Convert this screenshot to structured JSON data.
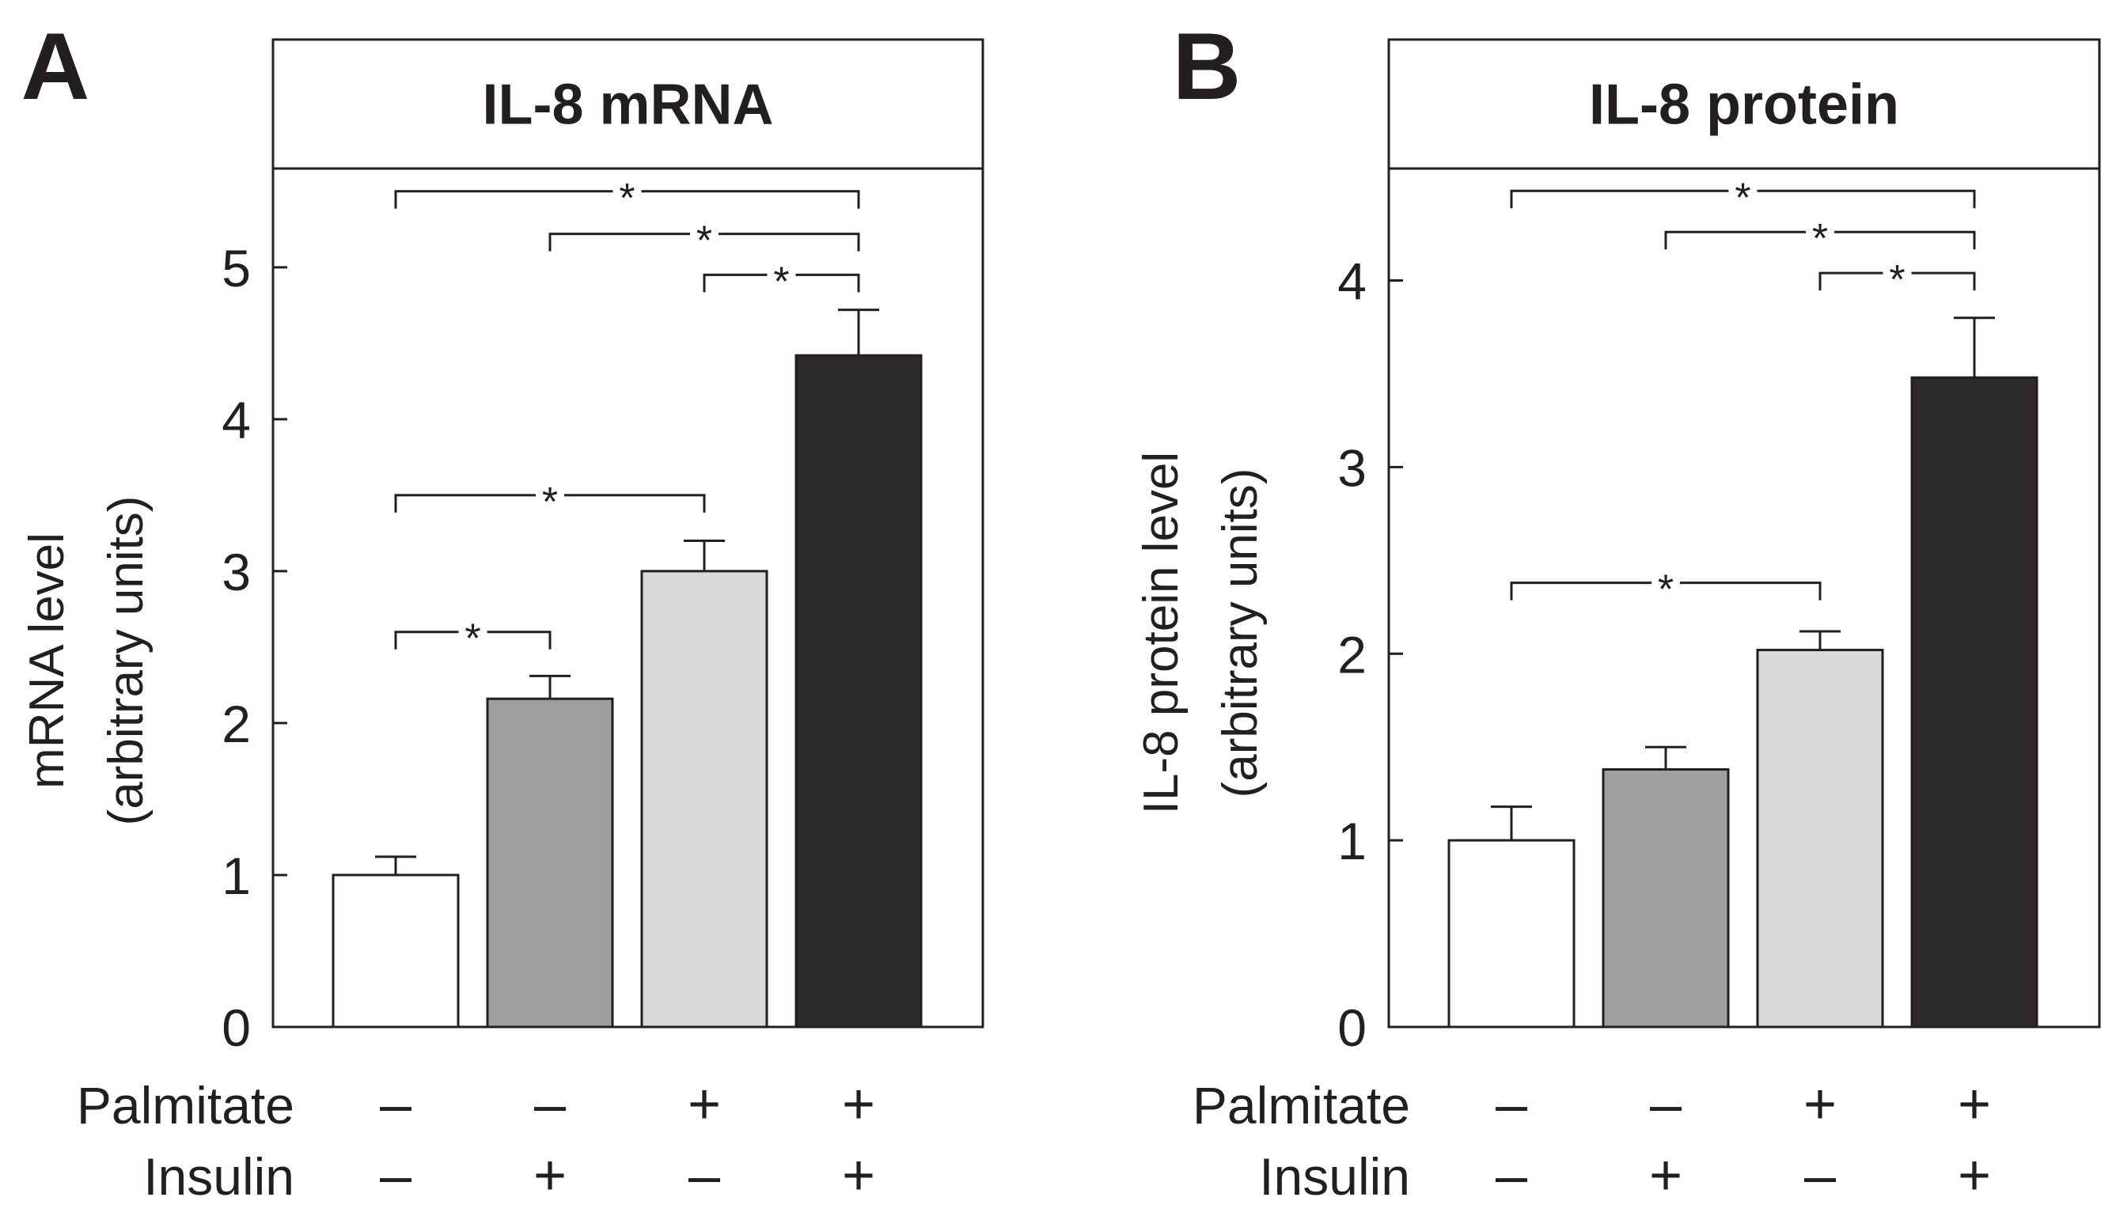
{
  "chart_data": [
    {
      "panel": "A",
      "title": "IL-8 mRNA",
      "type": "bar",
      "ylabel_line1": "mRNA level",
      "ylabel_line2": "(arbitrary units)",
      "ylim": [
        0,
        5.65
      ],
      "yticks": [
        0,
        1,
        2,
        3,
        4,
        5
      ],
      "values": [
        1.0,
        2.16,
        3.0,
        4.42
      ],
      "errors": [
        0.12,
        0.15,
        0.2,
        0.3
      ],
      "colors": [
        "#ffffff",
        "#9d9e9d",
        "#d9dbda",
        "#2b2a29"
      ],
      "significance": [
        {
          "from": 0,
          "to": 3,
          "y": 5.5,
          "label": "*"
        },
        {
          "from": 1,
          "to": 3,
          "y": 5.22,
          "label": "*"
        },
        {
          "from": 2,
          "to": 3,
          "y": 4.95,
          "label": "*"
        },
        {
          "from": 0,
          "to": 2,
          "y": 3.5,
          "label": "*"
        },
        {
          "from": 0,
          "to": 1,
          "y": 2.6,
          "label": "*"
        }
      ],
      "rows": [
        {
          "label": "Palmitate",
          "signs": [
            "–",
            "–",
            "+",
            "+"
          ]
        },
        {
          "label": "Insulin",
          "signs": [
            "–",
            "+",
            "–",
            "+"
          ]
        }
      ]
    },
    {
      "panel": "B",
      "title": "IL-8 protein",
      "type": "bar",
      "ylabel_line1": "IL-8 protein level",
      "ylabel_line2": "(arbitrary units)",
      "ylim": [
        0,
        4.6
      ],
      "yticks": [
        0,
        1,
        2,
        3,
        4
      ],
      "values": [
        1.0,
        1.38,
        2.02,
        3.48
      ],
      "errors": [
        0.18,
        0.12,
        0.1,
        0.32
      ],
      "colors": [
        "#ffffff",
        "#9d9e9d",
        "#d9dbda",
        "#2b2a29"
      ],
      "significance": [
        {
          "from": 0,
          "to": 3,
          "y": 4.48,
          "label": "*"
        },
        {
          "from": 1,
          "to": 3,
          "y": 4.26,
          "label": "*"
        },
        {
          "from": 2,
          "to": 3,
          "y": 4.04,
          "label": "*"
        },
        {
          "from": 0,
          "to": 2,
          "y": 2.38,
          "label": "*"
        }
      ],
      "rows": [
        {
          "label": "Palmitate",
          "signs": [
            "–",
            "–",
            "+",
            "+"
          ]
        },
        {
          "label": "Insulin",
          "signs": [
            "–",
            "+",
            "–",
            "+"
          ]
        }
      ]
    }
  ]
}
